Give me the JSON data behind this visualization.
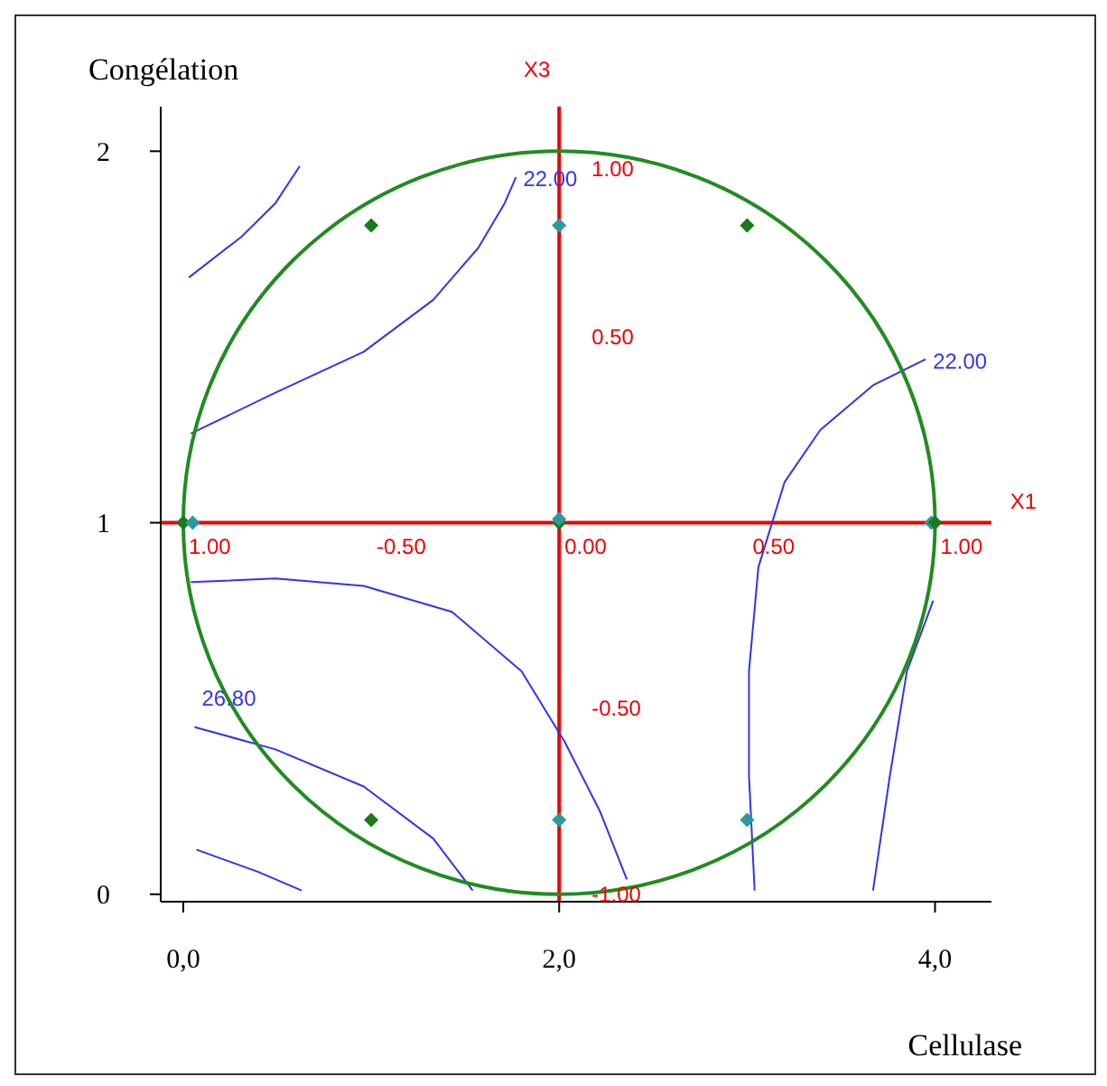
{
  "chart_data": {
    "type": "scatter",
    "xlabel": "Cellulase",
    "ylabel": "Congélation",
    "xlim": [
      -0.12,
      4.3
    ],
    "ylim": [
      -0.02,
      2.12
    ],
    "xticks": [
      {
        "value": 0,
        "label": "0,0"
      },
      {
        "value": 2,
        "label": "2,0"
      },
      {
        "value": 4,
        "label": "4,0"
      }
    ],
    "yticks": [
      0,
      1,
      2
    ],
    "grid": false,
    "legend": false,
    "series": [
      {
        "marker": "diamond",
        "color": "#1a7a1a",
        "colors": [
          "#1a7a1a",
          "#2a9a9a",
          "#1a7a1a",
          "#1a7a1a",
          "#2a9a9a",
          "#1a7a1a",
          "#2a9a9a",
          "#2a9a9a",
          "#1a7a1a",
          "#2a9a9a",
          "#1a7a1a",
          "#2a9a9a"
        ],
        "x": [
          1,
          2,
          3,
          0,
          0.05,
          2,
          2,
          3.98,
          4,
          2,
          1,
          3
        ],
        "values": [
          1.8,
          1.8,
          1.8,
          1,
          1,
          1,
          1.01,
          1,
          1,
          0.2,
          0.2,
          0.2
        ]
      },
      {
        "type": "line",
        "color": "#3333ee",
        "x": [
          0.03,
          0.31,
          0.49,
          0.62
        ],
        "values": [
          1.66,
          1.77,
          1.86,
          1.96
        ]
      },
      {
        "type": "line",
        "name": "22.00",
        "color": "#3333ee",
        "x": [
          1.77,
          1.71,
          1.57,
          1.33,
          0.96,
          0.49,
          0.04
        ],
        "values": [
          1.93,
          1.86,
          1.74,
          1.6,
          1.46,
          1.35,
          1.24
        ]
      },
      {
        "type": "line",
        "name": "22.00",
        "color": "#3333ee",
        "x": [
          3.95,
          3.67,
          3.39,
          3.2,
          3.06,
          3.01,
          3.01,
          3.04
        ],
        "values": [
          1.44,
          1.37,
          1.25,
          1.11,
          0.88,
          0.6,
          0.32,
          0.01
        ]
      },
      {
        "type": "line",
        "color": "#3333ee",
        "x": [
          3.67,
          3.76,
          3.85,
          3.99
        ],
        "values": [
          0.01,
          0.32,
          0.6,
          0.79
        ]
      },
      {
        "type": "line",
        "color": "#3333ee",
        "x": [
          0.04,
          0.49,
          0.96,
          1.43,
          1.8,
          2.03,
          2.22,
          2.36
        ],
        "values": [
          0.84,
          0.85,
          0.83,
          0.76,
          0.6,
          0.41,
          0.22,
          0.04
        ]
      },
      {
        "type": "line",
        "name": "26.80",
        "color": "#3333ee",
        "x": [
          0.06,
          0.49,
          0.96,
          1.33,
          1.54
        ],
        "values": [
          0.45,
          0.39,
          0.29,
          0.15,
          0.01
        ]
      },
      {
        "type": "line",
        "color": "#3333ee",
        "x": [
          0.07,
          0.4,
          0.63
        ],
        "values": [
          0.12,
          0.06,
          0.01
        ]
      }
    ],
    "ref_lines": [
      {
        "axis": "y",
        "value": 1,
        "label": "X1",
        "color": "#ee0000"
      },
      {
        "axis": "x",
        "value": 2,
        "label": "X3",
        "color": "#ee0000"
      }
    ],
    "annotations": [
      "1.00",
      "-0.50",
      "0.00",
      "0.50",
      "1.00",
      "1.00",
      "0.50",
      "-0.50",
      "-1.00"
    ]
  }
}
